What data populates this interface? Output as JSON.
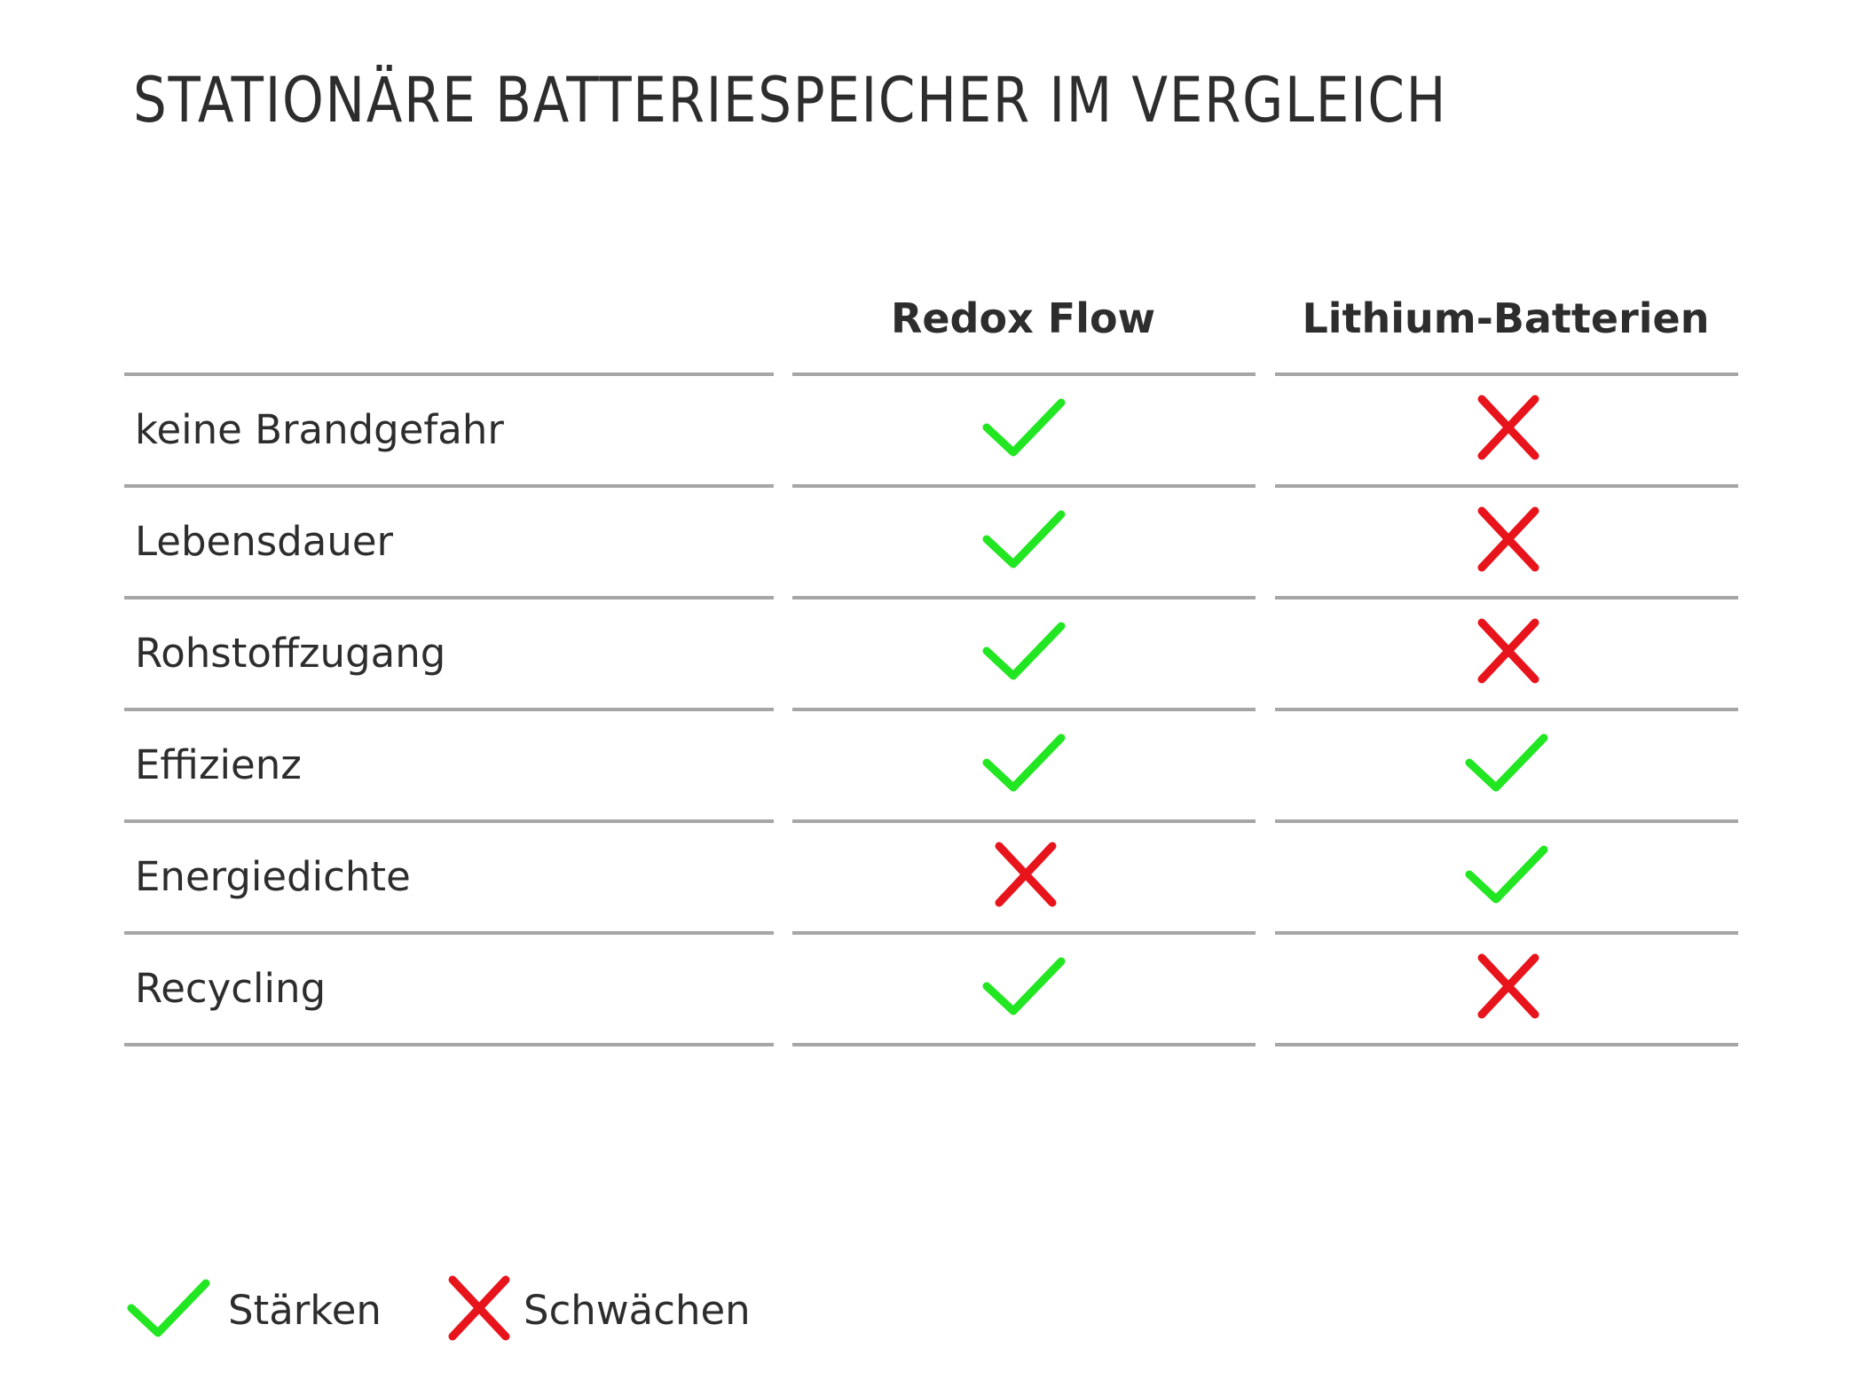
{
  "title": "STATIONÄRE BATTERIESPEICHER IM VERGLEICH",
  "columns": [
    "Redox Flow",
    "Lithium-Batterien"
  ],
  "rows": [
    {
      "label": "keine Brandgefahr",
      "values": [
        "check",
        "cross"
      ]
    },
    {
      "label": "Lebensdauer",
      "values": [
        "check",
        "cross"
      ]
    },
    {
      "label": "Rohstoffzugang",
      "values": [
        "check",
        "cross"
      ]
    },
    {
      "label": "Effizienz",
      "values": [
        "check",
        "check"
      ]
    },
    {
      "label": "Energiedichte",
      "values": [
        "cross",
        "check"
      ]
    },
    {
      "label": "Recycling",
      "values": [
        "check",
        "cross"
      ]
    }
  ],
  "legend": {
    "strengths_label": "Stärken",
    "weaknesses_label": "Schwächen"
  },
  "colors": {
    "check": "#22e622",
    "cross": "#e8141c",
    "rule": "#a6a6a6",
    "text": "#2d2d2d"
  }
}
